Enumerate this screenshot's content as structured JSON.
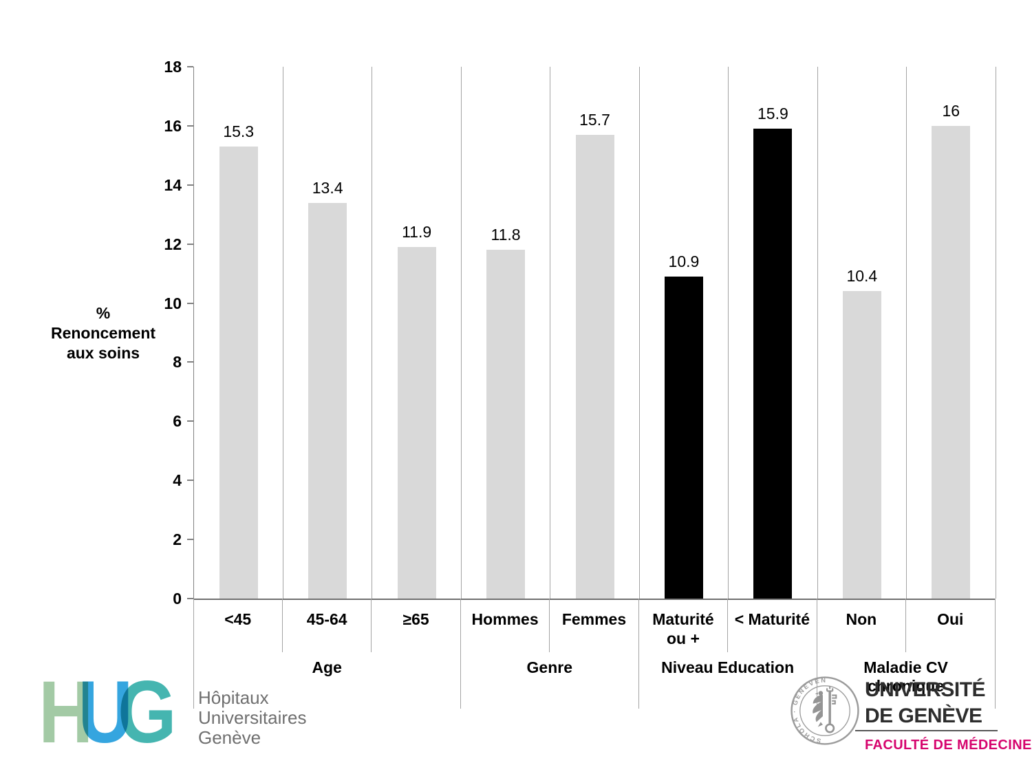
{
  "chart_data": {
    "type": "bar",
    "title": "",
    "ylabel_lines": [
      "%",
      "Renoncement",
      "aux soins"
    ],
    "ylim": [
      0,
      18
    ],
    "yticks": [
      0,
      2,
      4,
      6,
      8,
      10,
      12,
      14,
      16,
      18
    ],
    "grid": "vertical-category-separators",
    "legend": "none",
    "palette": {
      "gray": "#d9d9d9",
      "black": "#000000",
      "separator": "#a3a3a3",
      "axis": "#808080"
    },
    "groups": [
      {
        "label_lines": [
          "Age"
        ],
        "bars": [
          {
            "category_lines": [
              "<45"
            ],
            "value": 15.3,
            "color": "gray"
          },
          {
            "category_lines": [
              "45-64"
            ],
            "value": 13.4,
            "color": "gray"
          },
          {
            "category_lines": [
              "≥65"
            ],
            "value": 11.9,
            "color": "gray"
          }
        ]
      },
      {
        "label_lines": [
          "Genre"
        ],
        "bars": [
          {
            "category_lines": [
              "Hommes"
            ],
            "value": 11.8,
            "color": "gray"
          },
          {
            "category_lines": [
              "Femmes"
            ],
            "value": 15.7,
            "color": "gray"
          }
        ]
      },
      {
        "label_lines": [
          "Niveau Education"
        ],
        "bars": [
          {
            "category_lines": [
              "Maturité",
              "ou +"
            ],
            "value": 10.9,
            "color": "black"
          },
          {
            "category_lines": [
              "< Maturité"
            ],
            "value": 15.9,
            "color": "black"
          }
        ]
      },
      {
        "label_lines": [
          "Maladie CV",
          "chronique"
        ],
        "bars": [
          {
            "category_lines": [
              "Non"
            ],
            "value": 10.4,
            "color": "gray"
          },
          {
            "category_lines": [
              "Oui"
            ],
            "value": 16,
            "color": "gray"
          }
        ]
      }
    ]
  },
  "footer": {
    "hug": {
      "letters": [
        "H",
        "U",
        "G"
      ],
      "letter_colors": [
        "#a3caa5",
        "#35a5df",
        "#45b5b0"
      ],
      "name_lines": [
        "Hôpitaux",
        "Universitaires",
        "Genève"
      ]
    },
    "unige": {
      "line1": "UNIVERSITÉ",
      "line2": "DE GENÈVE",
      "line3": "FACULTÉ DE MÉDECINE",
      "faculty_color": "#d6056e",
      "seal_text": "SCHOLA · GENEVENSIS · 15 · 59 ·"
    }
  }
}
